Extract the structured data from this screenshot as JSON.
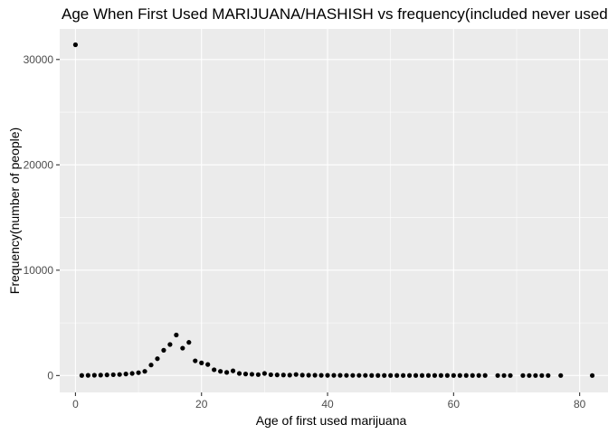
{
  "chart_data": {
    "type": "scatter",
    "title": "Age When First Used MARIJUANA/HASHISH vs frequency(included never used)",
    "xlabel": "Age of first used marijuana",
    "ylabel": "Frequency(number of people)",
    "xlim": [
      -2.5,
      84.5
    ],
    "ylim": [
      -1600,
      32900
    ],
    "x_ticks": [
      0,
      20,
      40,
      60,
      80
    ],
    "y_ticks": [
      0,
      10000,
      20000,
      30000
    ],
    "grid": true,
    "legend": "none",
    "point_color": "#000000",
    "panel_color": "#ebebeb",
    "grid_color": "#ffffff",
    "x": [
      0,
      1,
      2,
      3,
      4,
      5,
      6,
      7,
      8,
      9,
      10,
      11,
      12,
      13,
      14,
      15,
      16,
      17,
      18,
      19,
      20,
      21,
      22,
      23,
      24,
      25,
      26,
      27,
      28,
      29,
      30,
      31,
      32,
      33,
      34,
      35,
      36,
      37,
      38,
      39,
      40,
      41,
      42,
      43,
      44,
      45,
      46,
      47,
      48,
      49,
      50,
      51,
      52,
      53,
      54,
      55,
      56,
      57,
      58,
      59,
      60,
      61,
      62,
      63,
      64,
      65,
      67,
      68,
      69,
      71,
      72,
      73,
      74,
      75,
      77,
      82
    ],
    "y": [
      31400,
      10,
      20,
      30,
      40,
      60,
      80,
      100,
      150,
      200,
      270,
      400,
      1000,
      1600,
      2400,
      2950,
      3850,
      2600,
      3150,
      1400,
      1200,
      1050,
      550,
      400,
      300,
      450,
      200,
      150,
      120,
      90,
      200,
      80,
      60,
      50,
      40,
      100,
      40,
      30,
      30,
      20,
      20,
      20,
      20,
      15,
      15,
      15,
      15,
      10,
      10,
      10,
      10,
      10,
      10,
      10,
      10,
      10,
      10,
      10,
      10,
      10,
      10,
      10,
      10,
      10,
      10,
      10,
      5,
      5,
      5,
      5,
      5,
      5,
      5,
      5,
      5,
      5
    ]
  }
}
